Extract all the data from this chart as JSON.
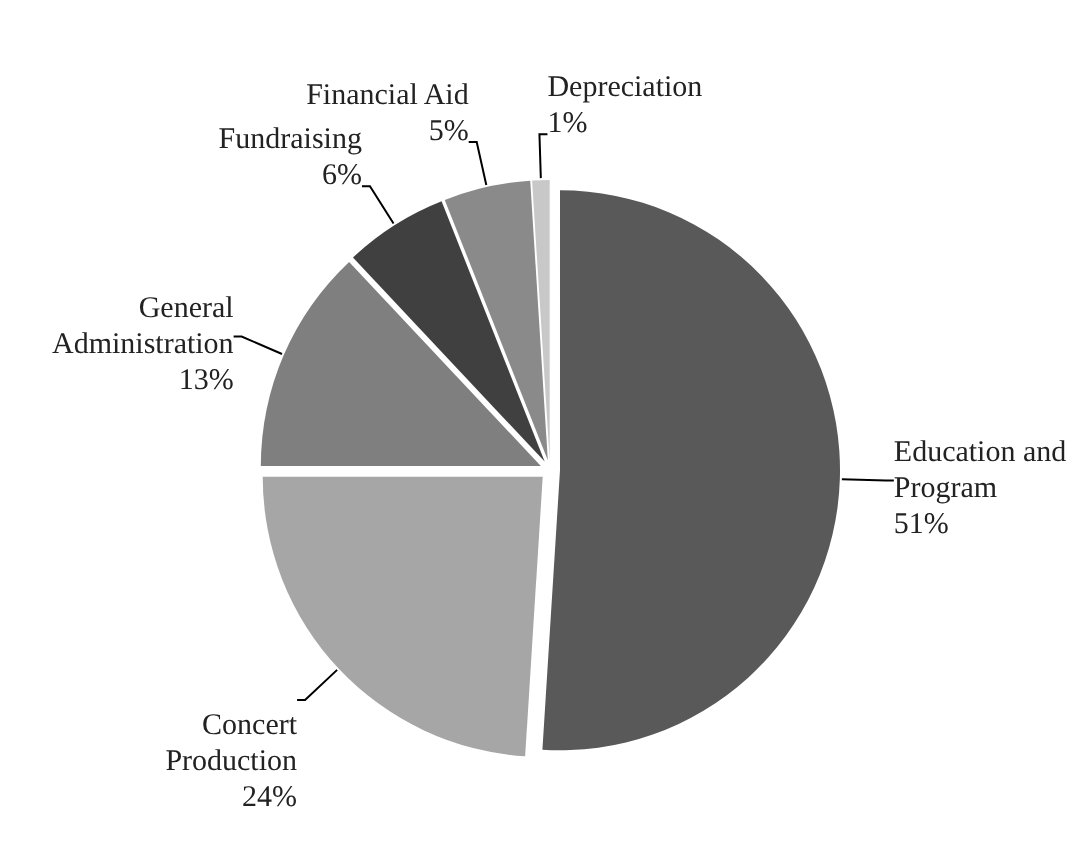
{
  "chart_data": {
    "type": "pie",
    "categories": [
      "Education and Program",
      "Concert Production",
      "General Administration",
      "Fundraising",
      "Financial Aid",
      "Depreciation"
    ],
    "values": [
      51,
      24,
      13,
      6,
      5,
      1
    ],
    "value_labels": [
      "51%",
      "24%",
      "13%",
      "6%",
      "5%",
      "1%"
    ],
    "colors": [
      "#595959",
      "#a6a6a6",
      "#7f7f7f",
      "#404040",
      "#8a8a8a",
      "#c8c8c8"
    ],
    "legend": false
  }
}
